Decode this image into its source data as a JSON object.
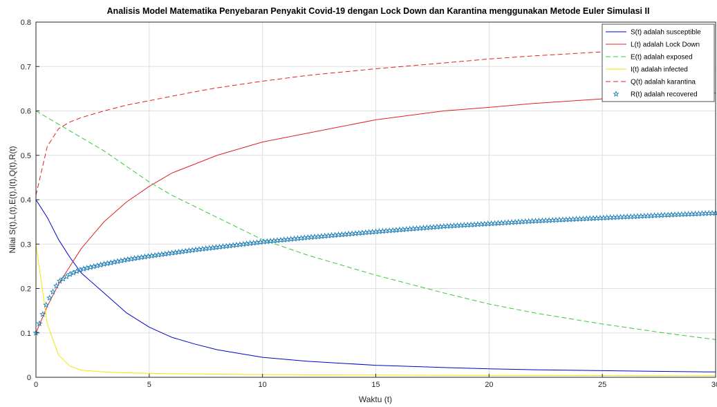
{
  "chart_data": {
    "type": "line",
    "title": "Analisis Model Matematika Penyebaran Penyakit Covid-19 dengan Lock Down dan Karantina menggunakan Metode Euler Simulasi II",
    "xlabel": "Waktu (t)",
    "ylabel": "Nilai S(t),L(t),E(t),I(t),Q(t),R(t)",
    "xlim": [
      0,
      30
    ],
    "ylim": [
      0,
      0.8
    ],
    "xticks": [
      "0",
      "5",
      "10",
      "15",
      "20",
      "25",
      "30"
    ],
    "yticks": [
      "0",
      "0.1",
      "0.2",
      "0.3",
      "0.4",
      "0.5",
      "0.6",
      "0.7",
      "0.8"
    ],
    "grid": true,
    "legend_position": "top-right",
    "x": [
      0,
      0.5,
      1,
      1.5,
      2,
      3,
      4,
      5,
      6,
      7,
      8,
      10,
      12,
      15,
      18,
      20,
      22,
      25,
      28,
      30
    ],
    "series": [
      {
        "name": "S(t) adalah susceptible",
        "color": "#0000cc",
        "style": "solid",
        "values": [
          0.4,
          0.36,
          0.31,
          0.27,
          0.235,
          0.19,
          0.145,
          0.113,
          0.09,
          0.075,
          0.062,
          0.045,
          0.036,
          0.027,
          0.022,
          0.019,
          0.017,
          0.015,
          0.013,
          0.012
        ]
      },
      {
        "name": "L(t) adalah Lock Down",
        "color": "#e02020",
        "style": "solid",
        "values": [
          0.1,
          0.16,
          0.21,
          0.25,
          0.29,
          0.35,
          0.395,
          0.43,
          0.46,
          0.48,
          0.5,
          0.53,
          0.55,
          0.58,
          0.6,
          0.608,
          0.617,
          0.627,
          0.635,
          0.64
        ]
      },
      {
        "name": "E(t) adalah exposed",
        "color": "#33cc33",
        "style": "dashed",
        "values": [
          0.6,
          0.585,
          0.57,
          0.555,
          0.54,
          0.51,
          0.475,
          0.44,
          0.41,
          0.385,
          0.36,
          0.31,
          0.275,
          0.23,
          0.19,
          0.165,
          0.145,
          0.12,
          0.098,
          0.085
        ]
      },
      {
        "name": "I(t) adalah infected",
        "color": "#f5e600",
        "style": "solid",
        "values": [
          0.3,
          0.12,
          0.05,
          0.025,
          0.016,
          0.012,
          0.01,
          0.009,
          0.008,
          0.0075,
          0.007,
          0.006,
          0.0055,
          0.005,
          0.0045,
          0.0042,
          0.004,
          0.0038,
          0.0035,
          0.0035
        ]
      },
      {
        "name": "Q(t) adalah karantina",
        "color": "#e02020",
        "style": "dashed",
        "values": [
          0.41,
          0.52,
          0.56,
          0.575,
          0.585,
          0.6,
          0.613,
          0.623,
          0.633,
          0.643,
          0.652,
          0.667,
          0.68,
          0.695,
          0.708,
          0.717,
          0.724,
          0.733,
          0.74,
          0.744
        ]
      },
      {
        "name": "R(t) adalah recovered",
        "color": "#1f7fb4",
        "style": "star",
        "values": [
          0.1,
          0.17,
          0.215,
          0.232,
          0.243,
          0.255,
          0.265,
          0.273,
          0.28,
          0.287,
          0.293,
          0.305,
          0.315,
          0.328,
          0.34,
          0.346,
          0.352,
          0.359,
          0.366,
          0.37
        ]
      }
    ]
  }
}
